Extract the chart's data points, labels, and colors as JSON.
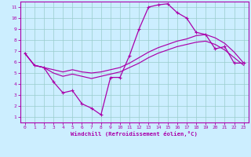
{
  "xlabel": "Windchill (Refroidissement éolien,°C)",
  "xlim": [
    -0.5,
    23.5
  ],
  "ylim": [
    0.5,
    11.5
  ],
  "xticks": [
    0,
    1,
    2,
    3,
    4,
    5,
    6,
    7,
    8,
    9,
    10,
    11,
    12,
    13,
    14,
    15,
    16,
    17,
    18,
    19,
    20,
    21,
    22,
    23
  ],
  "yticks": [
    1,
    2,
    3,
    4,
    5,
    6,
    7,
    8,
    9,
    10,
    11
  ],
  "bg_color": "#cceeff",
  "line_color": "#aa00aa",
  "grid_color": "#99cccc",
  "line1_x": [
    0,
    1,
    2,
    3,
    4,
    5,
    6,
    7,
    8,
    9,
    10,
    11,
    12,
    13,
    14,
    15,
    16,
    17,
    18,
    19,
    20,
    21,
    22,
    23
  ],
  "line1_y": [
    6.8,
    5.7,
    5.5,
    4.2,
    3.2,
    3.4,
    2.2,
    1.8,
    1.2,
    4.6,
    4.6,
    6.6,
    9.0,
    11.0,
    11.2,
    11.3,
    10.5,
    10.0,
    8.7,
    8.5,
    7.2,
    7.4,
    5.9,
    5.9
  ],
  "line2_x": [
    0,
    1,
    2,
    3,
    4,
    5,
    6,
    7,
    8,
    9,
    10,
    11,
    12,
    13,
    14,
    15,
    16,
    17,
    18,
    19,
    20,
    21,
    22,
    23
  ],
  "line2_y": [
    6.8,
    5.7,
    5.5,
    5.3,
    5.1,
    5.3,
    5.1,
    5.0,
    5.1,
    5.3,
    5.5,
    5.9,
    6.4,
    6.9,
    7.3,
    7.6,
    7.9,
    8.1,
    8.4,
    8.5,
    8.2,
    7.7,
    6.9,
    5.9
  ],
  "line3_x": [
    0,
    1,
    2,
    3,
    4,
    5,
    6,
    7,
    8,
    9,
    10,
    11,
    12,
    13,
    14,
    15,
    16,
    17,
    18,
    19,
    20,
    21,
    22,
    23
  ],
  "line3_y": [
    6.8,
    5.7,
    5.5,
    5.0,
    4.7,
    4.9,
    4.7,
    4.5,
    4.7,
    4.9,
    5.1,
    5.5,
    5.9,
    6.4,
    6.8,
    7.1,
    7.4,
    7.6,
    7.8,
    7.9,
    7.6,
    7.1,
    6.4,
    5.7
  ]
}
